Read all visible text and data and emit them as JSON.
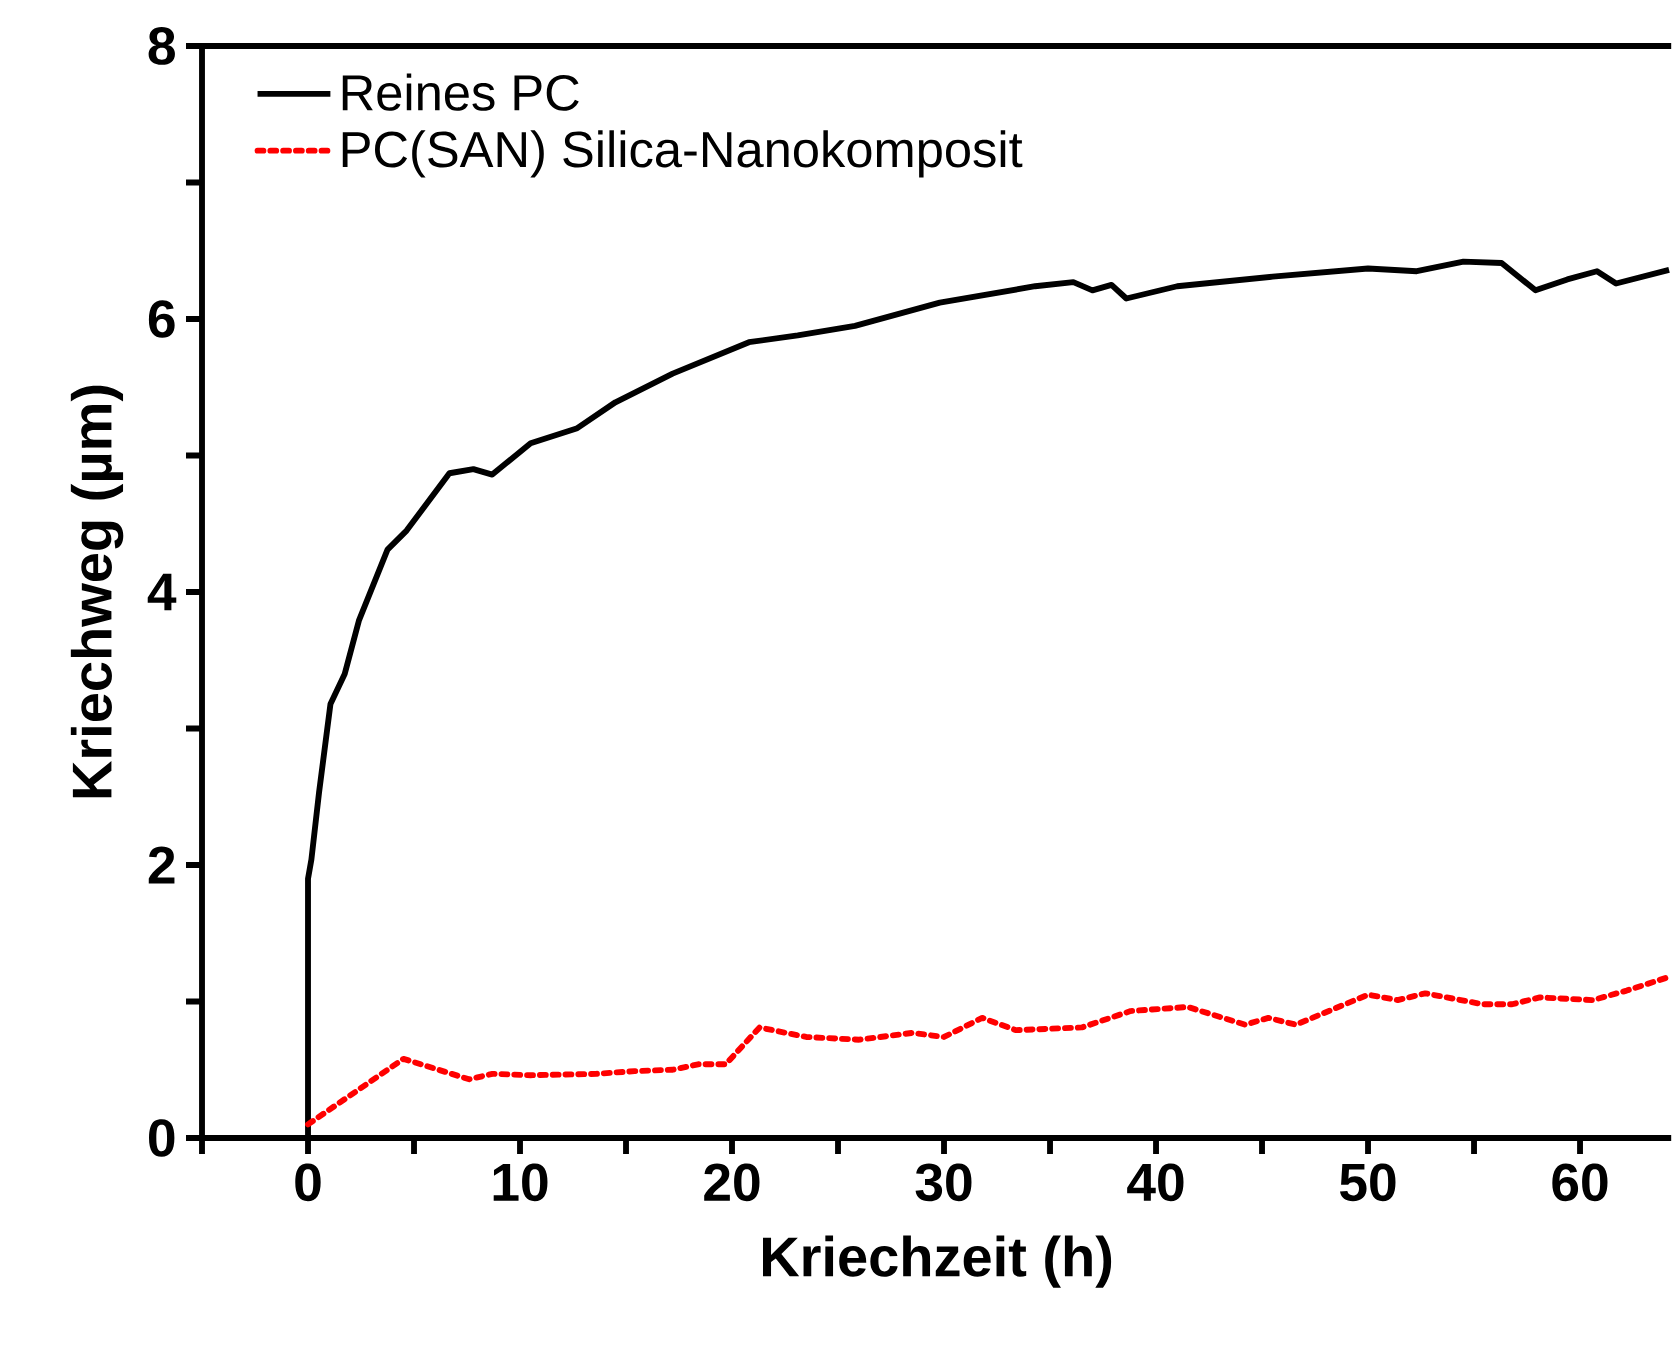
{
  "chart_data": {
    "type": "line",
    "xlabel": "Kriechzeit (h)",
    "ylabel": "Kriechweg (µm)",
    "xlim": [
      -5,
      64.3
    ],
    "ylim": [
      0,
      8
    ],
    "xticks": [
      {
        "value": -5,
        "label": null
      },
      0,
      {
        "value": 5,
        "label": null
      },
      10,
      {
        "value": 15,
        "label": null
      },
      20,
      {
        "value": 25,
        "label": null
      },
      30,
      {
        "value": 35,
        "label": null
      },
      40,
      {
        "value": 45,
        "label": null
      },
      50,
      {
        "value": 55,
        "label": null
      },
      60
    ],
    "yticks": [
      0,
      {
        "value": 1,
        "label": null
      },
      2,
      {
        "value": 3,
        "label": null
      },
      4,
      {
        "value": 5,
        "label": null
      },
      6,
      {
        "value": 7,
        "label": null
      },
      8
    ],
    "legend": "top left",
    "grid": false,
    "series": [
      {
        "name": "Reines PC",
        "color": "#000000",
        "line_style": "solid",
        "x": [
          0,
          0,
          0.16,
          0.52,
          1.06,
          1.73,
          2.4,
          3.75,
          4.65,
          6.67,
          7.8,
          8.69,
          10.5,
          12.7,
          14.5,
          17.2,
          20.8,
          23.1,
          25.8,
          29.8,
          34.3,
          36.1,
          37.0,
          37.9,
          38.6,
          41.0,
          45.5,
          50.0,
          52.3,
          54.5,
          56.3,
          57.9,
          59.4,
          60.8,
          61.7,
          64.2
        ],
        "values": [
          0,
          1.9,
          2.04,
          2.53,
          3.18,
          3.4,
          3.79,
          4.31,
          4.45,
          4.87,
          4.9,
          4.86,
          5.09,
          5.2,
          5.39,
          5.6,
          5.83,
          5.88,
          5.95,
          6.12,
          6.24,
          6.27,
          6.21,
          6.25,
          6.15,
          6.24,
          6.31,
          6.37,
          6.35,
          6.42,
          6.41,
          6.21,
          6.29,
          6.35,
          6.26,
          6.36
        ]
      },
      {
        "name": "PC(SAN) Silica-Nanokomposit",
        "color": "#ff0000",
        "line_style": "dotted",
        "x": [
          0,
          4.5,
          7.6,
          8.7,
          10.5,
          13.6,
          15.4,
          17.2,
          18.4,
          19.7,
          21.3,
          23.5,
          26.0,
          28.5,
          30.0,
          31.8,
          33.4,
          36.5,
          38.8,
          41.5,
          44.2,
          45.3,
          46.6,
          50.0,
          51.4,
          52.7,
          55.4,
          56.8,
          58.1,
          60.6,
          62.2,
          64.2
        ],
        "values": [
          0.1,
          0.58,
          0.43,
          0.47,
          0.46,
          0.47,
          0.49,
          0.5,
          0.54,
          0.54,
          0.81,
          0.74,
          0.72,
          0.77,
          0.74,
          0.88,
          0.79,
          0.81,
          0.93,
          0.96,
          0.83,
          0.88,
          0.83,
          1.05,
          1.01,
          1.06,
          0.98,
          0.98,
          1.03,
          1.01,
          1.08,
          1.18
        ]
      }
    ]
  }
}
